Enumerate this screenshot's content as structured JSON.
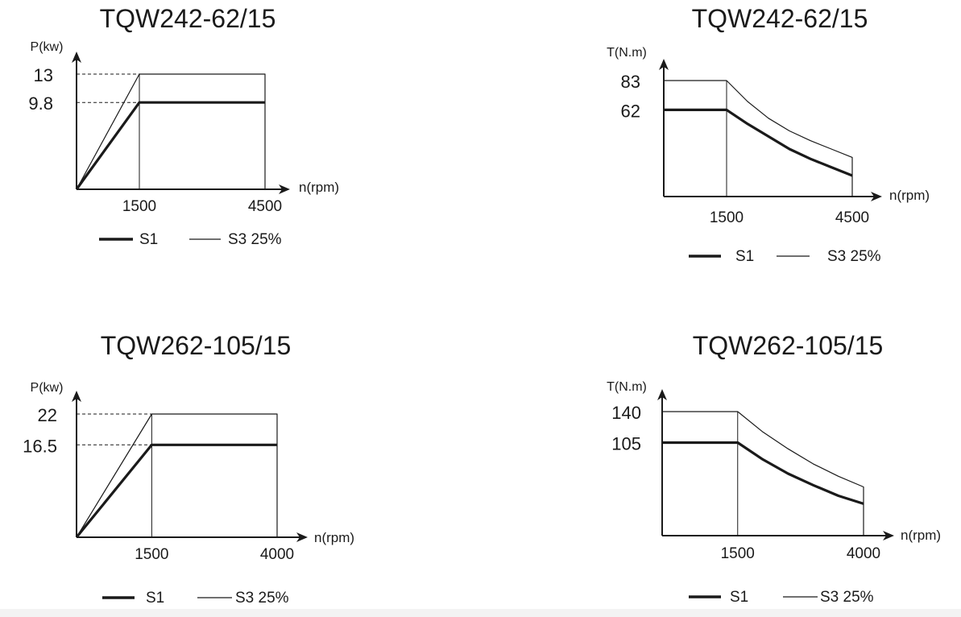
{
  "chart_data": [
    {
      "type": "line",
      "title": "TQW242-62/15",
      "ylabel": "P(kw)",
      "xlabel": "n(rpm)",
      "xticks": [
        1500,
        4500
      ],
      "yticks": [
        9.8,
        13
      ],
      "xlim": [
        0,
        4500
      ],
      "ylim": [
        0,
        13
      ],
      "series": [
        {
          "name": "S1",
          "x": [
            0,
            1500,
            4500
          ],
          "y": [
            0,
            9.8,
            9.8
          ]
        },
        {
          "name": "S3  25%",
          "x": [
            0,
            1500,
            4500,
            4500
          ],
          "y": [
            0,
            13,
            13,
            0
          ]
        }
      ],
      "legend": "bottom"
    },
    {
      "type": "line",
      "title": "TQW242-62/15",
      "ylabel": "T(N.m)",
      "xlabel": "n(rpm)",
      "xticks": [
        1500,
        4500
      ],
      "yticks": [
        62,
        83
      ],
      "xlim": [
        0,
        4500
      ],
      "ylim": [
        0,
        83
      ],
      "series": [
        {
          "name": "S1",
          "x": [
            0,
            1500,
            2000,
            2500,
            3000,
            3500,
            4000,
            4500
          ],
          "y": [
            62,
            62,
            52,
            43,
            34,
            27,
            21,
            15
          ]
        },
        {
          "name": "S3  25%",
          "x": [
            0,
            1500,
            2000,
            2500,
            3000,
            3500,
            4000,
            4500,
            4500
          ],
          "y": [
            83,
            83,
            68,
            56,
            47,
            40,
            34,
            28,
            0
          ]
        }
      ],
      "legend": "bottom"
    },
    {
      "type": "line",
      "title": "TQW262-105/15",
      "ylabel": "P(kw)",
      "xlabel": "n(rpm)",
      "xticks": [
        1500,
        4000
      ],
      "yticks": [
        16.5,
        22
      ],
      "xlim": [
        0,
        4000
      ],
      "ylim": [
        0,
        22
      ],
      "series": [
        {
          "name": "S1",
          "x": [
            0,
            1500,
            4000
          ],
          "y": [
            0,
            16.5,
            16.5
          ]
        },
        {
          "name": "S3  25%",
          "x": [
            0,
            1500,
            4000,
            4000
          ],
          "y": [
            0,
            22,
            22,
            0
          ]
        }
      ],
      "legend": "bottom"
    },
    {
      "type": "line",
      "title": "TQW262-105/15",
      "ylabel": "T(N.m)",
      "xlabel": "n(rpm)",
      "xticks": [
        1500,
        4000
      ],
      "yticks": [
        105,
        140
      ],
      "xlim": [
        0,
        4000
      ],
      "ylim": [
        0,
        140
      ],
      "series": [
        {
          "name": "S1",
          "x": [
            0,
            1500,
            2000,
            2500,
            3000,
            3500,
            4000
          ],
          "y": [
            105,
            105,
            86,
            70,
            57,
            45,
            36
          ]
        },
        {
          "name": "S3  25%",
          "x": [
            0,
            1500,
            2000,
            2500,
            3000,
            3500,
            4000,
            4000
          ],
          "y": [
            140,
            140,
            117,
            98,
            81,
            67,
            55,
            0
          ]
        }
      ],
      "legend": "bottom"
    }
  ]
}
